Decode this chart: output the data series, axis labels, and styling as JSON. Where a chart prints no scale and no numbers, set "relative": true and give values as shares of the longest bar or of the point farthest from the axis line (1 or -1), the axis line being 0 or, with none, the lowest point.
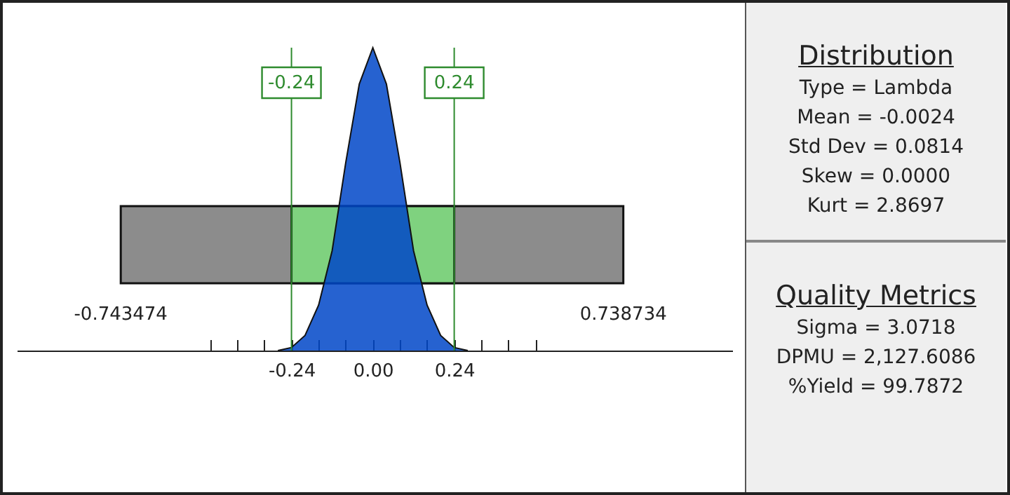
{
  "chart_data": [
    {
      "type": "area",
      "relative": true,
      "x": [
        -0.28,
        -0.24,
        -0.2,
        -0.16,
        -0.12,
        -0.08,
        -0.04,
        0,
        0.04,
        0.08,
        0.12,
        0.16,
        0.2,
        0.24,
        0.28
      ],
      "values": [
        0,
        0.01,
        0.05,
        0.15,
        0.33,
        0.62,
        0.88,
        1,
        0.88,
        0.62,
        0.33,
        0.15,
        0.05,
        0.01,
        0
      ],
      "color": "#0047c8",
      "xlim": [
        -1.05,
        1.06
      ],
      "xticks": [
        {
          "value": -0.48,
          "label": null
        },
        {
          "value": -0.4,
          "label": null
        },
        {
          "value": -0.32,
          "label": null
        },
        -0.24,
        {
          "value": -0.16,
          "label": null
        },
        {
          "value": -0.08,
          "label": null
        },
        {
          "value": 0,
          "label": "0.00"
        },
        {
          "value": 0.08,
          "label": null
        },
        {
          "value": 0.16,
          "label": null
        },
        0.24,
        {
          "value": 0.32,
          "label": null
        },
        {
          "value": 0.4,
          "label": null
        },
        {
          "value": 0.48,
          "label": null
        }
      ],
      "bands": [
        {
          "axis": "x",
          "from": -0.743474,
          "to": 0.738734,
          "color": "#8c8c8c"
        },
        {
          "axis": "x",
          "from": -0.24,
          "to": 0.24,
          "color": "#7fd27f"
        }
      ],
      "ref_lines": [
        {
          "axis": "x",
          "value": -0.24,
          "label": "-0.24",
          "color": "#2e8b2e"
        },
        {
          "axis": "x",
          "value": 0.24,
          "label": "0.24",
          "color": "#2e8b2e"
        }
      ],
      "annotations": [
        "-0.743474",
        "0.738734"
      ]
    },
    {
      "type": "other",
      "title": "Distribution",
      "annotations": [
        "Type = Lambda",
        "Mean = -0.0024",
        "Std Dev = 0.0814",
        "Skew = 0.0000",
        "Kurt = 2.8697"
      ]
    },
    {
      "type": "other",
      "title": "Quality Metrics",
      "annotations": [
        "Sigma = 3.0718",
        "DPMU = 2,127.6086",
        "%Yield = 99.7872"
      ]
    }
  ]
}
